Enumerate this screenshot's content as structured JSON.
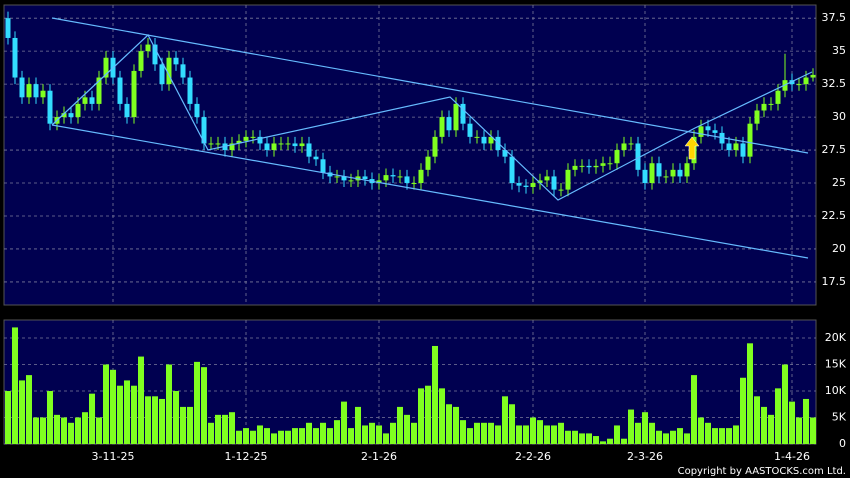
{
  "chart_data": {
    "type": "candlestick",
    "categories": [
      null,
      null,
      null,
      null,
      null,
      null,
      null,
      null,
      null,
      null,
      null,
      null,
      null,
      null,
      null,
      "3-11-25",
      null,
      null,
      null,
      null,
      null,
      null,
      null,
      null,
      null,
      null,
      null,
      null,
      null,
      null,
      null,
      null,
      null,
      null,
      "1-12-25",
      null,
      null,
      null,
      null,
      null,
      null,
      null,
      null,
      null,
      null,
      null,
      null,
      null,
      null,
      null,
      null,
      null,
      null,
      "2-1-26",
      null,
      null,
      null,
      null,
      null,
      null,
      null,
      null,
      null,
      null,
      null,
      null,
      null,
      null,
      null,
      null,
      null,
      null,
      null,
      null,
      null,
      "2-2-26",
      null,
      null,
      null,
      null,
      null,
      null,
      null,
      null,
      null,
      null,
      null,
      null,
      null,
      null,
      null,
      "2-3-26",
      null,
      null,
      null,
      null,
      null,
      null,
      null,
      null,
      null,
      null,
      null,
      null,
      null,
      null,
      null,
      null,
      null,
      null,
      null,
      null,
      "1-4-26",
      null,
      null,
      null
    ],
    "open": [
      37.5,
      36,
      33,
      31.5,
      32.5,
      31.5,
      32,
      29.5,
      30,
      30.3,
      30,
      31,
      31.5,
      31,
      33,
      34.5,
      33,
      31,
      30,
      33.5,
      35,
      35.5,
      34,
      32.5,
      34.5,
      34,
      33,
      31,
      30,
      28,
      28,
      28,
      27.5,
      28,
      28.2,
      28.5,
      28.5,
      28,
      27.5,
      28,
      28,
      28,
      27.8,
      28,
      27,
      26.8,
      25.8,
      25.5,
      25.5,
      25.2,
      25.2,
      25.5,
      25.3,
      25,
      25.2,
      25.6,
      25.5,
      25.5,
      25,
      25,
      26,
      27,
      28.5,
      30,
      29,
      31,
      29.5,
      28.5,
      28.5,
      28,
      28.5,
      27.5,
      27,
      25,
      24.8,
      24.7,
      25,
      25.2,
      25.5,
      24.5,
      24.5,
      26,
      26.3,
      26.3,
      26.2,
      26.3,
      26.5,
      26.5,
      27.5,
      28,
      28,
      26,
      25,
      26.5,
      25.5,
      25.5,
      26,
      25.5,
      26.5,
      28.5,
      29.3,
      29,
      28.8,
      28,
      27.5,
      28,
      27,
      29.5,
      30.5,
      31,
      31,
      32,
      32.8,
      32.5,
      32.5,
      33
    ],
    "high": [
      38,
      36.5,
      33.5,
      33,
      33,
      32.5,
      32.5,
      30.5,
      30.8,
      30.8,
      31.5,
      32,
      32,
      33.5,
      35,
      35,
      33.5,
      31.5,
      34,
      35.5,
      36,
      36,
      34.5,
      35,
      35,
      34.5,
      33.5,
      31.5,
      30.5,
      28.5,
      28.5,
      28.5,
      28.5,
      28.7,
      29,
      29,
      29,
      28.5,
      28.5,
      28.5,
      28.5,
      28.5,
      28.5,
      28.5,
      27.5,
      27.3,
      26.3,
      26,
      26,
      25.7,
      26,
      26,
      25.8,
      25.7,
      26.1,
      26.1,
      26,
      26,
      25.5,
      26.5,
      27.5,
      29,
      30.5,
      30.5,
      31.5,
      31.5,
      30,
      29,
      29,
      29,
      29,
      28,
      27.5,
      25.5,
      25.3,
      25.5,
      25.7,
      26,
      26,
      25,
      26.5,
      26.8,
      26.8,
      26.8,
      26.8,
      27,
      27,
      28,
      28.5,
      28.5,
      28.5,
      26.5,
      27,
      27,
      26,
      26.5,
      26.5,
      27,
      29,
      29.8,
      29.8,
      29.5,
      29.3,
      28.5,
      28.5,
      28.5,
      30,
      31,
      31.5,
      31.5,
      32.5,
      34.8,
      33.3,
      33,
      33.5,
      33.7
    ],
    "low": [
      35.5,
      32.5,
      31,
      31,
      31,
      31,
      29,
      29,
      29.5,
      29.5,
      29.5,
      30.5,
      30.5,
      30.5,
      32.5,
      32.5,
      30.5,
      29.5,
      29.5,
      33,
      34.5,
      33.5,
      32,
      32,
      33.5,
      32.5,
      30.5,
      29.5,
      27.5,
      27.5,
      27.5,
      27,
      27,
      27.5,
      27.7,
      28,
      27.5,
      27,
      27,
      27.5,
      27.5,
      27.3,
      27.3,
      26.5,
      26.3,
      25.3,
      25,
      25,
      24.7,
      24.7,
      24.7,
      24.8,
      24.5,
      24.5,
      24.7,
      25,
      25,
      24.5,
      24.5,
      24.5,
      25.5,
      26.5,
      28,
      28.5,
      28.5,
      29,
      28,
      28,
      27.5,
      27.5,
      27,
      26.5,
      24.5,
      24.3,
      24.2,
      24.2,
      24.5,
      24.7,
      24,
      24,
      24,
      25.5,
      25.8,
      25.7,
      25.7,
      25.8,
      26,
      26,
      27,
      27.5,
      25.5,
      24.5,
      24.5,
      25,
      25,
      25,
      25,
      25,
      26,
      28,
      28.5,
      28.3,
      27.5,
      27,
      27,
      26.5,
      26.5,
      29,
      30,
      30.5,
      30.5,
      31.5,
      32,
      32,
      32,
      32.7
    ],
    "close": [
      36,
      33,
      31.5,
      32.5,
      31.5,
      32,
      29.5,
      30,
      30.3,
      30,
      31,
      31.5,
      31,
      33,
      34.5,
      33,
      31,
      30,
      33.5,
      35,
      35.5,
      34,
      32.5,
      34.5,
      34,
      33,
      31,
      30,
      28,
      28,
      28,
      27.5,
      28,
      28.2,
      28.5,
      28.5,
      28,
      27.5,
      28,
      28,
      28,
      27.8,
      28,
      27,
      26.8,
      25.8,
      25.5,
      25.5,
      25.2,
      25.2,
      25.5,
      25.3,
      25,
      25.2,
      25.6,
      25.5,
      25.5,
      25,
      25,
      26,
      27,
      28.5,
      30,
      29,
      31,
      29.5,
      28.5,
      28.5,
      28,
      28.5,
      27.5,
      27,
      25,
      24.8,
      24.7,
      25,
      25.2,
      25.5,
      24.5,
      24.5,
      26,
      26.3,
      26.3,
      26.2,
      26.3,
      26.5,
      26.5,
      27.5,
      28,
      28,
      26,
      25,
      26.5,
      25.5,
      25.5,
      26,
      25.5,
      26.5,
      28.5,
      29.3,
      29,
      28.8,
      28,
      27.5,
      28,
      27,
      29.5,
      30.5,
      31,
      31,
      32,
      32.8,
      32.5,
      32.5,
      33,
      33.2
    ],
    "volume": [
      10000,
      22000,
      12000,
      13000,
      5000,
      5000,
      10000,
      5500,
      5000,
      4000,
      5000,
      6000,
      9500,
      5000,
      15000,
      14000,
      11000,
      12000,
      11000,
      16500,
      9000,
      9000,
      8500,
      15000,
      10000,
      7000,
      7000,
      15500,
      14500,
      4000,
      5500,
      5500,
      6000,
      2500,
      3000,
      2500,
      3500,
      3000,
      2000,
      2500,
      2500,
      3000,
      3000,
      4000,
      3000,
      4000,
      3000,
      4500,
      8000,
      3000,
      7000,
      3500,
      4000,
      3500,
      2000,
      4000,
      7000,
      5500,
      4000,
      10500,
      11000,
      18500,
      10500,
      7500,
      7000,
      4500,
      3000,
      4000,
      4000,
      4000,
      3500,
      9000,
      7500,
      3500,
      3500,
      5000,
      4500,
      3500,
      3500,
      4000,
      2500,
      2500,
      2000,
      2000,
      1500,
      500,
      1000,
      3500,
      1000,
      6500,
      4000,
      6000,
      4000,
      2500,
      2000,
      2500,
      3000,
      2000,
      13000,
      5000,
      4000,
      3000,
      3000,
      3000,
      3500,
      12500,
      19000,
      9000,
      7000,
      5500,
      10500,
      15000,
      8000,
      5000,
      8500,
      5000
    ],
    "up_color": "#80ff20",
    "down_color": "#33ddff",
    "volume_color": "#80ff20",
    "ylim": [
      15.75,
      38.5
    ],
    "yticks": [
      17.5,
      20,
      22.5,
      25,
      27.5,
      30,
      32.5,
      35,
      37.5
    ],
    "volume_ylim": [
      0,
      23400
    ],
    "volume_yticks": [
      0,
      {
        "value": 5000,
        "label": "5K"
      },
      {
        "value": 10000,
        "label": "10K"
      },
      {
        "value": 15000,
        "label": "15K"
      },
      {
        "value": 20000,
        "label": "20K"
      }
    ],
    "grid": true,
    "copyright": "Copyright by AASTOCKS.com Ltd."
  }
}
